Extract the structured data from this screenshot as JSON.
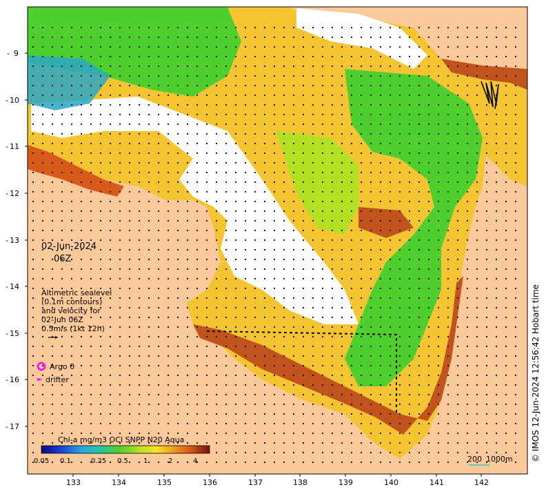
{
  "map": {
    "date": "02-Jun-2024",
    "time": "06Z",
    "altimetry_note": {
      "line1": "Altimetric sealevel",
      "line2": "(0.1m contours)",
      "line3": "and velocity for",
      "line4": "02-Jun 06Z",
      "line5": "0.5m/s (1kt 12h)"
    },
    "legend": {
      "argo_label": "Argo 0",
      "drifter_label": "drifter",
      "argo_color": "#ff00ff",
      "drifter_color": "#ff00ff"
    },
    "colorbar": {
      "title": "Chl-a mg/m3 OCI SNPP N20 Aqua",
      "ticks": [
        "0.05",
        "0.1",
        "0.25",
        "0.5",
        "1",
        "2",
        "4"
      ]
    },
    "scale_bar": {
      "label_left": "200",
      "label_right": "1000m"
    },
    "credit": "© IMOS 12-Jun-2024 12:56:42 Hobart time",
    "axes": {
      "lon_ticks": [
        "133",
        "134",
        "135",
        "136",
        "137",
        "138",
        "139",
        "140",
        "141",
        "142"
      ],
      "lat_ticks": [
        "9",
        "10",
        "11",
        "12",
        "13",
        "14",
        "15",
        "16",
        "17"
      ]
    },
    "colors": {
      "land": "#fbc99a",
      "no_data": "#ffffff",
      "high_chl": "#c0541c",
      "mid_chl": "#f4c431",
      "low_chl": "#4fcf2e",
      "very_low_chl": "#29a7c5"
    }
  }
}
